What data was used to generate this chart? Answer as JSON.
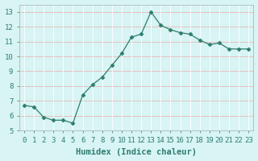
{
  "x": [
    0,
    1,
    2,
    3,
    4,
    5,
    6,
    7,
    8,
    9,
    10,
    11,
    12,
    13,
    14,
    15,
    16,
    17,
    18,
    19,
    20,
    21,
    22,
    23
  ],
  "y": [
    6.7,
    6.6,
    5.9,
    5.7,
    5.7,
    5.5,
    7.4,
    8.1,
    8.6,
    9.4,
    10.2,
    11.3,
    11.5,
    13.0,
    12.1,
    11.8,
    11.6,
    11.5,
    11.1,
    10.8,
    10.9,
    10.5,
    10.5,
    10.5
  ],
  "line_color": "#2e7d6e",
  "marker": "D",
  "bg_color": "#d8f4f4",
  "hgrid_color": "#e8b8b8",
  "vgrid_color": "#ffffff",
  "xlabel": "Humidex (Indice chaleur)",
  "xlim": [
    -0.5,
    23.5
  ],
  "ylim": [
    5.0,
    13.5
  ],
  "yticks": [
    5,
    6,
    7,
    8,
    9,
    10,
    11,
    12,
    13
  ],
  "xticks": [
    0,
    1,
    2,
    3,
    4,
    5,
    6,
    7,
    8,
    9,
    10,
    11,
    12,
    13,
    14,
    15,
    16,
    17,
    18,
    19,
    20,
    21,
    22,
    23
  ],
  "font_size": 6.5,
  "xlabel_font_size": 7.5,
  "line_width": 0.9,
  "marker_size": 2.5,
  "tick_color": "#2e7d6e",
  "label_color": "#2e7d6e"
}
